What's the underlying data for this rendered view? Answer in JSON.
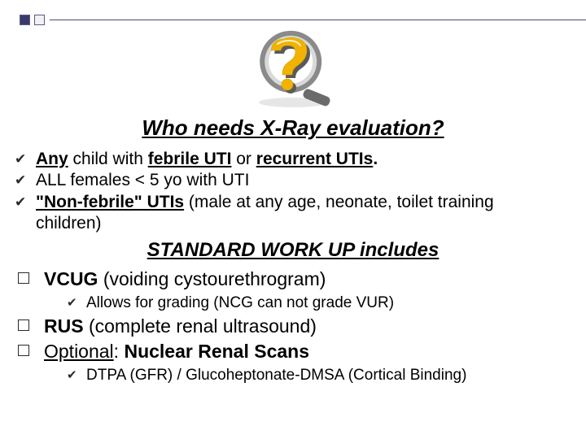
{
  "title": "Who needs X-Ray evaluation?",
  "subtitle": "STANDARD WORK UP includes",
  "bullets1": [
    {
      "segments": [
        {
          "text": "Any",
          "class": "bu"
        },
        {
          "text": " child with ",
          "class": ""
        },
        {
          "text": "febrile UTI",
          "class": "bu"
        },
        {
          "text": " or ",
          "class": ""
        },
        {
          "text": "recurrent UTIs",
          "class": "bu"
        },
        {
          "text": ".",
          "class": "b"
        }
      ]
    },
    {
      "segments": [
        {
          "text": "ALL females < 5 yo with UTI",
          "class": ""
        }
      ]
    },
    {
      "segments": [
        {
          "text": "\"Non-febrile\" UTIs",
          "class": "bu"
        },
        {
          "text": " (male at any age, neonate, toilet training children)",
          "class": ""
        }
      ]
    }
  ],
  "bullets2": [
    {
      "segments": [
        {
          "text": "VCUG",
          "class": "b"
        },
        {
          "text": " (voiding cystourethrogram)",
          "class": ""
        }
      ],
      "sub": [
        {
          "segments": [
            {
              "text": "Allows for grading (NCG can not grade VUR)",
              "class": ""
            }
          ]
        }
      ]
    },
    {
      "segments": [
        {
          "text": "RUS",
          "class": "b"
        },
        {
          "text": " (complete renal ultrasound)",
          "class": ""
        }
      ]
    },
    {
      "segments": [
        {
          "text": "Optional",
          "class": "u"
        },
        {
          "text": ": ",
          "class": ""
        },
        {
          "text": "Nuclear Renal Scans",
          "class": "b"
        }
      ],
      "sub": [
        {
          "segments": [
            {
              "text": "DTPA (GFR) / Glucoheptonate-DMSA (Cortical Binding)",
              "class": ""
            }
          ]
        }
      ]
    }
  ],
  "icon": {
    "ring_outer": "#8a8a8a",
    "ring_inner": "#d9d9d9",
    "glass_bg": "#ffffff",
    "handle": "#6b6b6b",
    "q_fill": "#f2b200",
    "q_shadow": "#5a5a5a"
  }
}
